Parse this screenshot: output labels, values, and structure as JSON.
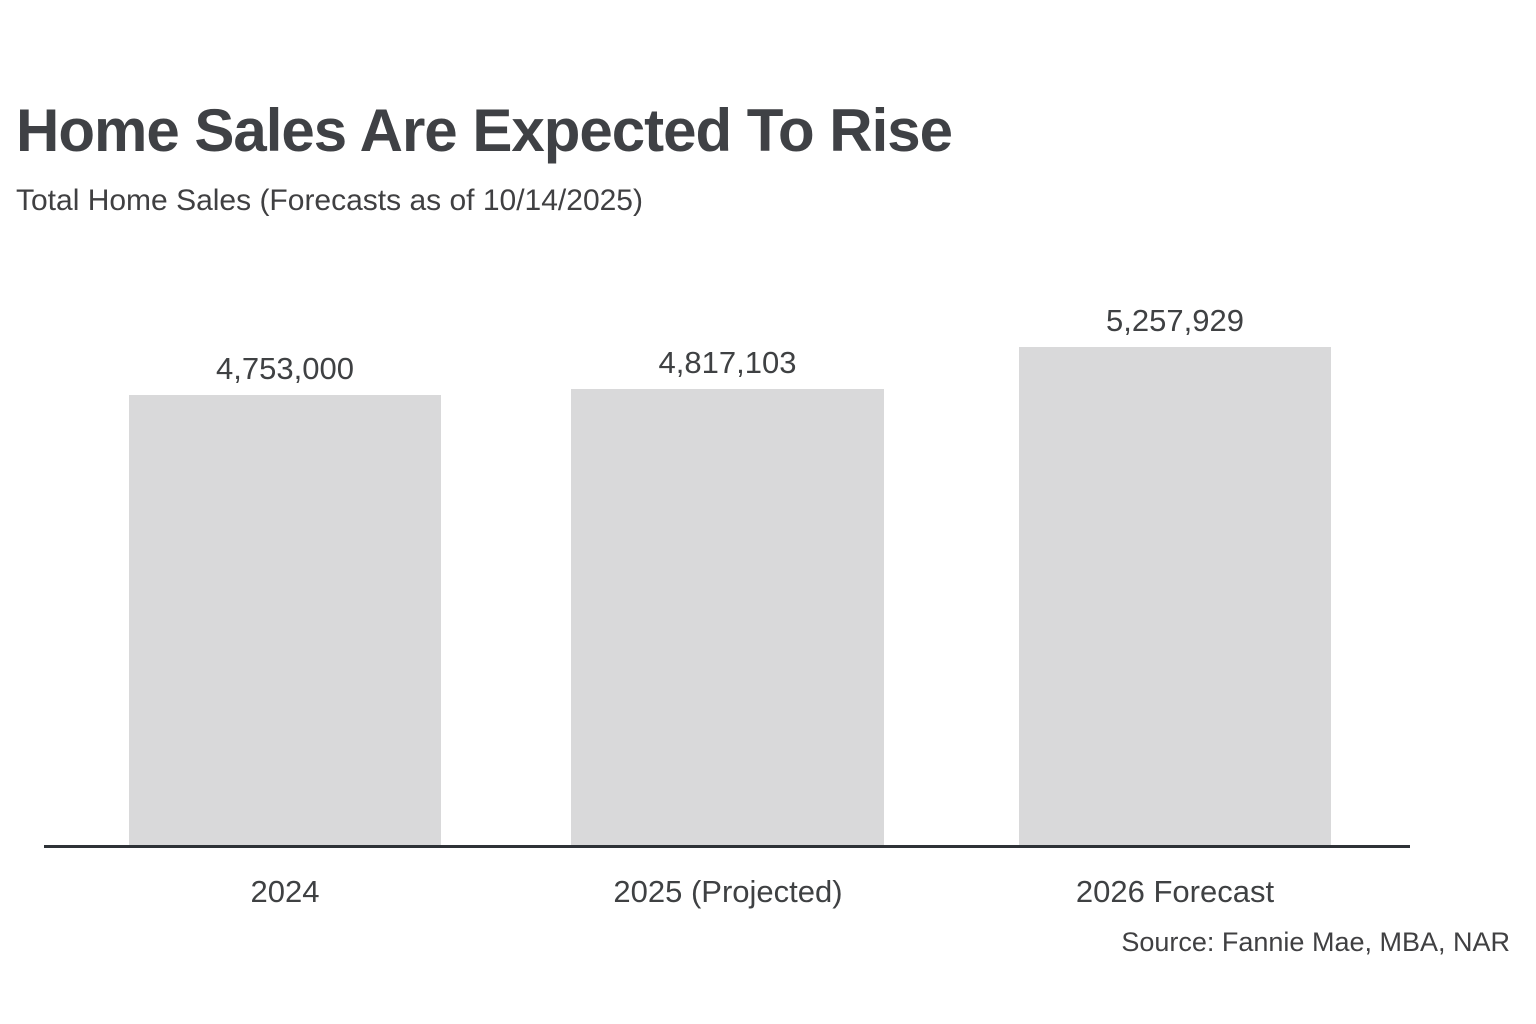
{
  "page": {
    "background_color": "#ffffff"
  },
  "chart_data": {
    "type": "bar",
    "title": "Home Sales Are Expected To Rise",
    "subtitle": "Total Home Sales (Forecasts as of 10/14/2025)",
    "source": "Source: Fannie Mae, MBA, NAR",
    "categories": [
      "2024",
      "2025 (Projected)",
      "2026 Forecast"
    ],
    "values": [
      4753000,
      4817103,
      5257929
    ],
    "value_labels": [
      "4,753,000",
      "4,817,103",
      "5,257,929"
    ],
    "xlabel": "",
    "ylabel": "",
    "ylim": [
      0,
      5257929
    ],
    "grid": false,
    "legend_position": "none",
    "bar_color": "#d9d9da",
    "text_color": "#404040",
    "title_color": "#3f4145",
    "axis_color": "#2e3237"
  }
}
